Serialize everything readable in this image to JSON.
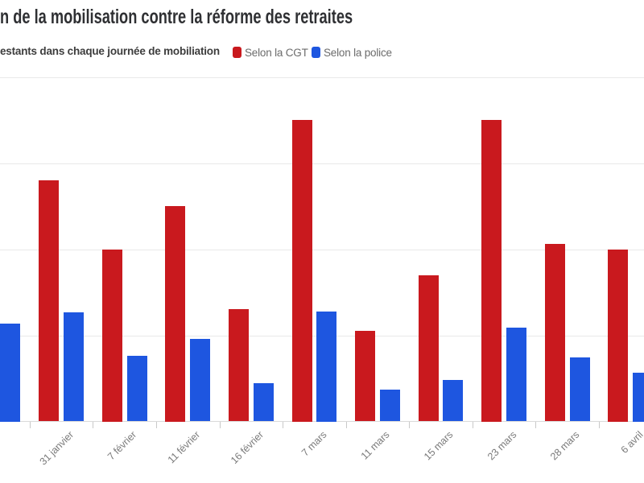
{
  "header": {
    "title": "n de la mobilisation contre la réforme des retraites",
    "subtitle": "estants dans chaque journée de mobiliation",
    "legend": [
      {
        "label": "Selon la CGT",
        "color": "#c9191e"
      },
      {
        "label": "Selon la police",
        "color": "#1e56e0"
      }
    ]
  },
  "chart_data": {
    "type": "bar",
    "title": "n de la mobilisation contre la réforme des retraites",
    "subtitle": "estants dans chaque journée de mobiliation",
    "categories": [
      "",
      "31 janvier",
      "7 février",
      "11 février",
      "16 février",
      "7 mars",
      "11 mars",
      "15 mars",
      "23 mars",
      "28 mars",
      "6 avril"
    ],
    "series": [
      {
        "name": "Selon la CGT",
        "color": "#c9191e",
        "values": [
          null,
          2.8,
          2.0,
          2.5,
          1.3,
          3.5,
          1.05,
          1.7,
          3.5,
          2.06,
          2.0
        ]
      },
      {
        "name": "Selon la police",
        "color": "#1e56e0",
        "values": [
          1.14,
          1.27,
          0.76,
          0.96,
          0.44,
          1.28,
          0.37,
          0.48,
          1.09,
          0.74,
          0.57
        ]
      }
    ],
    "xlabel": "",
    "ylabel": "",
    "ylim": [
      0,
      4.2
    ],
    "gridline_values": [
      1,
      2,
      3,
      4
    ],
    "grid": "on",
    "y_axis_labels_visible": false,
    "legend_position": "top",
    "x_labels_rotated_degrees": -45
  }
}
